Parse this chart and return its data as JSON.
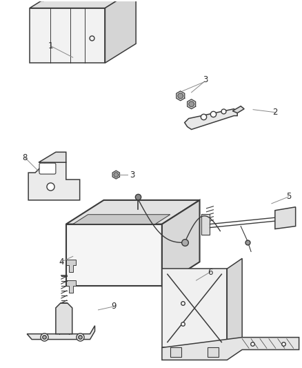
{
  "background_color": "#ffffff",
  "line_color": "#3a3a3a",
  "gray_fill": "#f0f0f0",
  "dark_gray": "#d0d0d0",
  "mid_gray": "#e0e0e0",
  "text_color": "#2a2a2a",
  "leader_color": "#888888",
  "fig_width": 4.39,
  "fig_height": 5.33,
  "dpi": 100
}
